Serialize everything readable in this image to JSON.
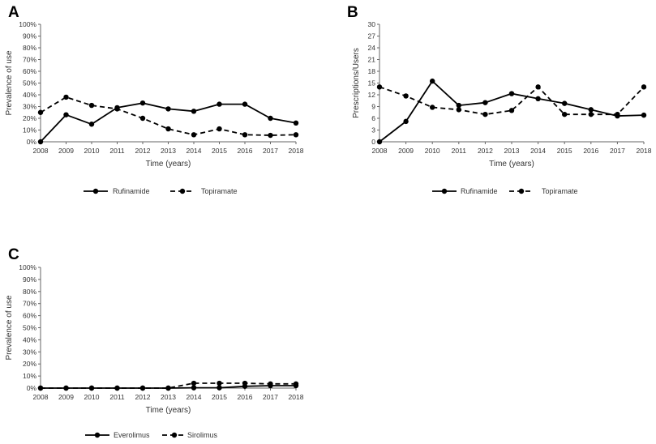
{
  "chart_data": [
    {
      "panel": "A",
      "type": "line",
      "x": [
        2008,
        2009,
        2010,
        2011,
        2012,
        2013,
        2014,
        2015,
        2016,
        2017,
        2018
      ],
      "series": [
        {
          "name": "Rufinamide",
          "style": "solid",
          "values": [
            0,
            23,
            15,
            29,
            33,
            28,
            26,
            32,
            32,
            20,
            16
          ]
        },
        {
          "name": "Topiramate",
          "style": "dashed",
          "values": [
            25,
            38,
            31,
            28,
            20,
            11,
            6,
            11,
            6,
            5.5,
            6
          ]
        }
      ],
      "yticks": [
        "0%",
        "10%",
        "20%",
        "30%",
        "40%",
        "50%",
        "60%",
        "70%",
        "80%",
        "90%",
        "100%"
      ],
      "ylim": [
        0,
        100
      ],
      "xlabel": "Time (years)",
      "ylabel": "Prevalence of use",
      "color": "#000000"
    },
    {
      "panel": "B",
      "type": "line",
      "x": [
        2008,
        2009,
        2010,
        2011,
        2012,
        2013,
        2014,
        2015,
        2016,
        2017,
        2018
      ],
      "series": [
        {
          "name": "Rufinamide",
          "style": "solid",
          "values": [
            0,
            5.2,
            15.5,
            9.3,
            10,
            12.3,
            11,
            9.8,
            8.2,
            6.6,
            6.8
          ]
        },
        {
          "name": "Topiramate",
          "style": "dashed",
          "values": [
            14,
            11.7,
            8.8,
            8.2,
            7,
            8,
            14,
            7,
            7,
            7,
            14
          ]
        }
      ],
      "yticks": [
        "0",
        "3",
        "6",
        "9",
        "12",
        "15",
        "18",
        "21",
        "24",
        "27",
        "30"
      ],
      "ylim": [
        0,
        30
      ],
      "xlabel": "Time (years)",
      "ylabel": "Prescriptions/Users",
      "color": "#000000"
    },
    {
      "panel": "C",
      "type": "line",
      "x": [
        2008,
        2009,
        2010,
        2011,
        2012,
        2013,
        2014,
        2015,
        2016,
        2017,
        2018
      ],
      "series": [
        {
          "name": "Everolimus",
          "style": "solid",
          "values": [
            0,
            0,
            0,
            0,
            0,
            0,
            0.3,
            0.3,
            1.5,
            2,
            2
          ]
        },
        {
          "name": "Sirolimus",
          "style": "dashed",
          "values": [
            0,
            0,
            0,
            0,
            0,
            0,
            4,
            4,
            4,
            3.5,
            3.5
          ]
        }
      ],
      "yticks": [
        "0%",
        "10%",
        "20%",
        "30%",
        "40%",
        "50%",
        "60%",
        "70%",
        "80%",
        "90%",
        "100%"
      ],
      "ylim": [
        0,
        100
      ],
      "xlabel": "Time (years)",
      "ylabel": "Prevalence of use",
      "color": "#000000"
    }
  ]
}
